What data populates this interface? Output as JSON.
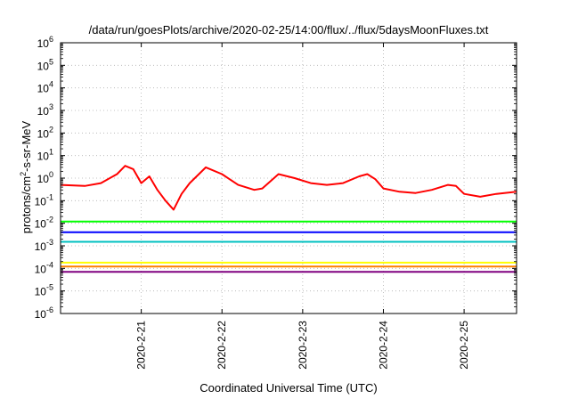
{
  "chart_data": {
    "type": "line",
    "title": "/data/run/goesPlots/archive/2020-02-25/14:00/flux/../flux/5daysMoonFluxes.txt",
    "xlabel": "Coordinated Universal Time (UTC)",
    "ylabel": {
      "base": "protons/cm",
      "sup": "2",
      "rest": "-s-sr-MeV"
    },
    "y_scale": "log",
    "ylim": [
      1e-06,
      1000000.0
    ],
    "y_ticks": [
      {
        "value": 1e-06,
        "base": "10",
        "exp": "-6"
      },
      {
        "value": 1e-05,
        "base": "10",
        "exp": "-5"
      },
      {
        "value": 0.0001,
        "base": "10",
        "exp": "-4"
      },
      {
        "value": 0.001,
        "base": "10",
        "exp": "-3"
      },
      {
        "value": 0.01,
        "base": "10",
        "exp": "-2"
      },
      {
        "value": 0.1,
        "base": "10",
        "exp": "-1"
      },
      {
        "value": 1.0,
        "base": "10",
        "exp": "0"
      },
      {
        "value": 10.0,
        "base": "10",
        "exp": "1"
      },
      {
        "value": 100.0,
        "base": "10",
        "exp": "2"
      },
      {
        "value": 1000.0,
        "base": "10",
        "exp": "3"
      },
      {
        "value": 10000.0,
        "base": "10",
        "exp": "4"
      },
      {
        "value": 100000.0,
        "base": "10",
        "exp": "5"
      },
      {
        "value": 1000000.0,
        "base": "10",
        "exp": "6"
      }
    ],
    "x_range_days": [
      0,
      5.65
    ],
    "x_ticks": [
      {
        "day": 1.0,
        "label": "2020-2-21"
      },
      {
        "day": 2.0,
        "label": "2020-2-22"
      },
      {
        "day": 3.0,
        "label": "2020-2-23"
      },
      {
        "day": 4.0,
        "label": "2020-2-24"
      },
      {
        "day": 5.0,
        "label": "2020-2-25"
      }
    ],
    "grid": true,
    "series": [
      {
        "color": "#ff0000",
        "points": [
          [
            0,
            0.5
          ],
          [
            0.3,
            0.45
          ],
          [
            0.5,
            0.6
          ],
          [
            0.7,
            1.5
          ],
          [
            0.8,
            3.5
          ],
          [
            0.9,
            2.5
          ],
          [
            1.0,
            0.6
          ],
          [
            1.1,
            1.2
          ],
          [
            1.2,
            0.3
          ],
          [
            1.3,
            0.1
          ],
          [
            1.4,
            0.04
          ],
          [
            1.5,
            0.2
          ],
          [
            1.6,
            0.6
          ],
          [
            1.8,
            3.0
          ],
          [
            2.0,
            1.5
          ],
          [
            2.2,
            0.5
          ],
          [
            2.4,
            0.3
          ],
          [
            2.5,
            0.35
          ],
          [
            2.7,
            1.5
          ],
          [
            2.9,
            1.0
          ],
          [
            3.1,
            0.6
          ],
          [
            3.3,
            0.5
          ],
          [
            3.5,
            0.6
          ],
          [
            3.7,
            1.2
          ],
          [
            3.8,
            1.5
          ],
          [
            3.9,
            0.9
          ],
          [
            4.0,
            0.35
          ],
          [
            4.2,
            0.25
          ],
          [
            4.4,
            0.22
          ],
          [
            4.6,
            0.3
          ],
          [
            4.8,
            0.5
          ],
          [
            4.9,
            0.45
          ],
          [
            5.0,
            0.2
          ],
          [
            5.2,
            0.15
          ],
          [
            5.4,
            0.2
          ],
          [
            5.65,
            0.25
          ]
        ]
      },
      {
        "color": "#00ff00",
        "points": [
          [
            0,
            0.012
          ],
          [
            5.65,
            0.012
          ]
        ]
      },
      {
        "color": "#0000ff",
        "points": [
          [
            0,
            0.004
          ],
          [
            5.65,
            0.004
          ]
        ]
      },
      {
        "color": "#00c0c0",
        "points": [
          [
            0,
            0.0015
          ],
          [
            5.65,
            0.0015
          ]
        ]
      },
      {
        "color": "#ffff00",
        "points": [
          [
            0,
            0.00018
          ],
          [
            5.65,
            0.00018
          ]
        ]
      },
      {
        "color": "#ff8000",
        "points": [
          [
            0,
            0.00012
          ],
          [
            5.65,
            0.00012
          ]
        ]
      },
      {
        "color": "#800080",
        "points": [
          [
            0,
            7e-05
          ],
          [
            5.65,
            7e-05
          ]
        ]
      }
    ]
  }
}
